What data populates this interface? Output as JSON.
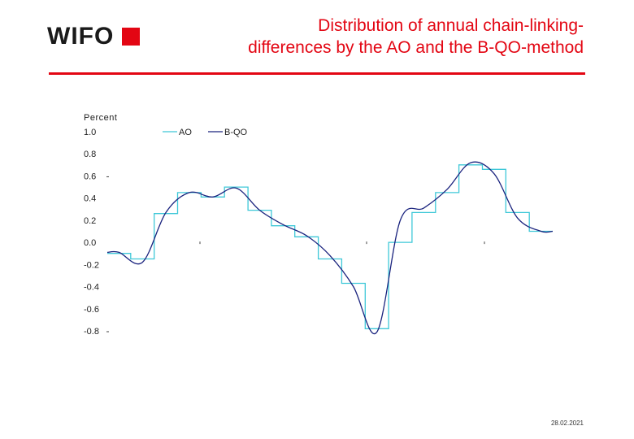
{
  "header": {
    "logo_text": "WIFO",
    "title_line1": "Distribution of annual chain-linking-",
    "title_line2": "differences by the AO and the B-QO-method"
  },
  "footer": {
    "date": "28.02.2021"
  },
  "colors": {
    "brand_red": "#e30613",
    "ao": "#3fc8d8",
    "bqo": "#1a237e"
  },
  "chart_data": {
    "type": "line",
    "ylabel": "Percent",
    "ylim": [
      -0.8,
      1.0
    ],
    "y_ticks": [
      1.0,
      0.8,
      0.6,
      0.4,
      0.2,
      0.0,
      -0.2,
      -0.4,
      -0.6,
      -0.8
    ],
    "y_tick_labels": [
      "1.0",
      "0.8",
      "0.6",
      "0.4",
      "0.2",
      "0.0",
      "-0.2",
      "-0.4",
      "-0.6",
      "-0.8"
    ],
    "grid": false,
    "legend": "top",
    "series": [
      {
        "name": "AO",
        "style": "step",
        "values": [
          -0.1,
          -0.15,
          0.26,
          0.45,
          0.41,
          0.5,
          0.29,
          0.15,
          0.05,
          -0.15,
          -0.37,
          -0.78,
          0.0,
          0.27,
          0.45,
          0.7,
          0.66,
          0.27,
          0.1
        ]
      },
      {
        "name": "B-QO",
        "style": "smooth",
        "values": [
          -0.09,
          -0.18,
          0.27,
          0.45,
          0.41,
          0.49,
          0.29,
          0.16,
          0.06,
          -0.12,
          -0.4,
          -0.81,
          0.2,
          0.31,
          0.48,
          0.72,
          0.62,
          0.22,
          0.1
        ]
      }
    ]
  }
}
